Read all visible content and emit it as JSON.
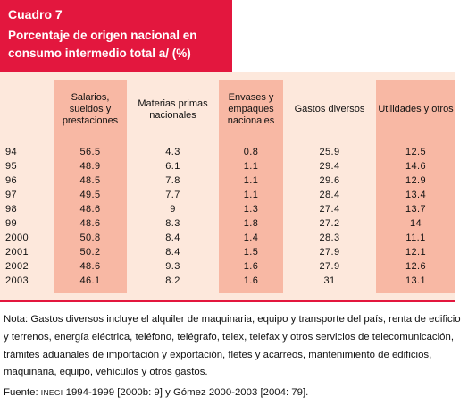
{
  "title": {
    "cuadro": "Cuadro 7",
    "subtitle_line1": "Porcentaje de origen nacional en",
    "subtitle_line2": "consumo intermedio total a/ (%)"
  },
  "table": {
    "headers": [
      "",
      "Salarios, sueldos y prestaciones",
      "Materias primas nacionales",
      "Envases y empaques nacionales",
      "Gastos diversos",
      "Utilidades y otros"
    ],
    "rows": [
      [
        "94",
        "56.5",
        "4.3",
        "0.8",
        "25.9",
        "12.5"
      ],
      [
        "95",
        "48.9",
        "6.1",
        "1.1",
        "29.4",
        "14.6"
      ],
      [
        "96",
        "48.5",
        "7.8",
        "1.1",
        "29.6",
        "12.9"
      ],
      [
        "97",
        "49.5",
        "7.7",
        "1.1",
        "28.4",
        "13.4"
      ],
      [
        "98",
        "48.6",
        "9",
        "1.3",
        "27.4",
        "13.7"
      ],
      [
        "99",
        "48.6",
        "8.3",
        "1.8",
        "27.2",
        "14"
      ],
      [
        "2000",
        "50.8",
        "8.4",
        "1.4",
        "28.3",
        "11.1"
      ],
      [
        "2001",
        "50.2",
        "8.4",
        "1.5",
        "27.9",
        "12.1"
      ],
      [
        "2002",
        "48.6",
        "9.3",
        "1.6",
        "27.9",
        "12.6"
      ],
      [
        "2003",
        "46.1",
        "8.2",
        "1.6",
        "31",
        "13.1"
      ]
    ]
  },
  "note": "Nota: Gastos diversos incluye el alquiler de maquinaria, equipo y transporte del país, renta de edificio y terrenos, energía eléctrica, teléfono, telégrafo, telex, telefax y otros servicios de telecomunicación, trámites aduanales de importación y exportación, fletes y acarreos, mantenimiento de edificios, maquinaria, equipo, vehículos y otros gastos.",
  "source": {
    "prefix": "Fuente: ",
    "org": "INEGI",
    "rest": " 1994-1999 [2000b: 9] y Gómez 2000-2003 [2004: 79]."
  },
  "colors": {
    "accent_red": "#e3173e",
    "shaded_column": "#f8b8a4",
    "light_column": "#fde8dc"
  }
}
